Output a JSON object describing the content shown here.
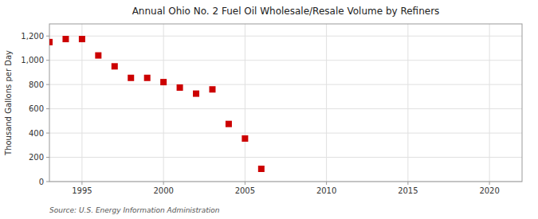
{
  "chart_data": {
    "type": "scatter",
    "title": "Annual Ohio No. 2 Fuel Oil Wholesale/Resale Volume by Refiners",
    "y_label": "Thousand Gallons per Day",
    "source": "Source: U.S. Energy Information Administration",
    "x": [
      1993,
      1994,
      1995,
      1996,
      1997,
      1998,
      1999,
      2000,
      2001,
      2002,
      2003,
      2004,
      2005,
      2006
    ],
    "values": [
      1150,
      1175,
      1175,
      1040,
      950,
      855,
      855,
      820,
      775,
      725,
      760,
      475,
      355,
      105
    ],
    "color": "#cc0000",
    "marker": "square",
    "xlim": [
      1993,
      2022
    ],
    "xticks": [
      1995,
      2000,
      2005,
      2010,
      2015,
      2020
    ],
    "ylim": [
      0,
      1300
    ],
    "yticks": [
      0,
      200,
      400,
      600,
      800,
      {
        "value": 1000,
        "label": "1,000"
      },
      {
        "value": 1200,
        "label": "1,200"
      }
    ],
    "grid": true
  }
}
